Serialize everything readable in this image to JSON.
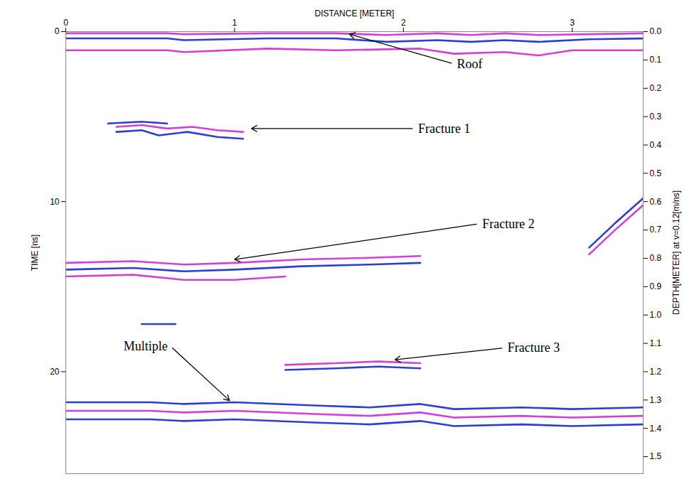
{
  "chart_data": {
    "type": "radargram",
    "xlabel": "DISTANCE [METER]",
    "ylabel": "TIME [ns]",
    "y2label": "DEPTH[METER] at v=0.12[m/ns]",
    "xlim": [
      0,
      3.42
    ],
    "xticks": [
      0,
      1,
      2,
      3
    ],
    "ylim": [
      0,
      26
    ],
    "yticks": [
      0,
      10,
      20
    ],
    "y2lim": [
      0,
      1.56
    ],
    "y2ticks": [
      {
        "value": 0,
        "label": "0.0"
      },
      0.1,
      0.2,
      0.3,
      0.4,
      0.5,
      0.6,
      0.7,
      0.8,
      0.9,
      {
        "value": 1,
        "label": "1.0"
      },
      1.1,
      1.2,
      1.3,
      1.4,
      1.5
    ],
    "series": [
      {
        "color": "#d43fd4",
        "x": [
          0,
          0.6,
          0.7,
          1.2,
          1.6,
          1.9,
          2.2,
          2.4,
          2.6,
          2.8,
          3.1,
          3.42
        ],
        "values": [
          0.1,
          0.1,
          0.15,
          0.1,
          0.1,
          0.2,
          0.1,
          0.2,
          0.1,
          0.2,
          0.15,
          0.1
        ]
      },
      {
        "color": "#2b3fd0",
        "x": [
          0,
          0.6,
          0.7,
          1.2,
          1.6,
          1.9,
          2.2,
          2.4,
          2.6,
          2.8,
          3.1,
          3.42
        ],
        "values": [
          0.4,
          0.4,
          0.5,
          0.4,
          0.4,
          0.6,
          0.5,
          0.6,
          0.5,
          0.6,
          0.45,
          0.4
        ]
      },
      {
        "color": "#d43fd4",
        "x": [
          0,
          0.6,
          0.7,
          1.2,
          1.6,
          2.1,
          2.3,
          2.6,
          2.8,
          3.0,
          3.42
        ],
        "values": [
          1.1,
          1.1,
          1.2,
          1.0,
          1.1,
          1.0,
          1.3,
          1.2,
          1.4,
          1.1,
          1.1
        ]
      },
      {
        "color": "#2b3fd0",
        "x": [
          0.25,
          0.45,
          0.6
        ],
        "values": [
          5.4,
          5.3,
          5.4
        ]
      },
      {
        "color": "#d43fd4",
        "x": [
          0.3,
          0.45,
          0.6,
          0.75,
          0.9,
          1.05
        ],
        "values": [
          5.6,
          5.5,
          5.7,
          5.6,
          5.8,
          5.9
        ]
      },
      {
        "color": "#2b3fd0",
        "x": [
          0.3,
          0.45,
          0.55,
          0.72,
          0.9,
          1.05
        ],
        "values": [
          5.9,
          5.8,
          6.1,
          5.9,
          6.2,
          6.3
        ]
      },
      {
        "color": "#d43fd4",
        "x": [
          0,
          0.4,
          0.7,
          1.0,
          1.4,
          1.8,
          2.1
        ],
        "values": [
          13.6,
          13.5,
          13.7,
          13.6,
          13.4,
          13.3,
          13.2
        ]
      },
      {
        "color": "#2b3fd0",
        "x": [
          0,
          0.4,
          0.7,
          1.0,
          1.4,
          1.8,
          2.1
        ],
        "values": [
          14.0,
          13.9,
          14.1,
          14.0,
          13.8,
          13.7,
          13.6
        ]
      },
      {
        "color": "#d43fd4",
        "x": [
          0,
          0.4,
          0.7,
          1.0,
          1.3
        ],
        "values": [
          14.4,
          14.3,
          14.6,
          14.6,
          14.4
        ]
      },
      {
        "color": "#2b3fd0",
        "x": [
          0.45,
          0.65
        ],
        "values": [
          17.2,
          17.2
        ]
      },
      {
        "color": "#d43fd4",
        "x": [
          1.3,
          1.6,
          1.85,
          2.1
        ],
        "values": [
          19.6,
          19.5,
          19.4,
          19.5
        ]
      },
      {
        "color": "#2b3fd0",
        "x": [
          1.3,
          1.6,
          1.85,
          2.1
        ],
        "values": [
          19.9,
          19.8,
          19.7,
          19.8
        ]
      },
      {
        "color": "#2b3fd0",
        "x": [
          0,
          0.5,
          0.7,
          1.0,
          1.5,
          1.8,
          2.1,
          2.3,
          2.7,
          3.0,
          3.42
        ],
        "values": [
          21.8,
          21.8,
          21.9,
          21.8,
          22.0,
          22.1,
          21.9,
          22.2,
          22.1,
          22.2,
          22.1
        ]
      },
      {
        "color": "#d43fd4",
        "x": [
          0,
          0.5,
          0.7,
          1.0,
          1.5,
          1.8,
          2.1,
          2.3,
          2.7,
          3.0,
          3.42
        ],
        "values": [
          22.3,
          22.3,
          22.4,
          22.3,
          22.5,
          22.6,
          22.4,
          22.7,
          22.6,
          22.7,
          22.6
        ]
      },
      {
        "color": "#2b3fd0",
        "x": [
          0,
          0.5,
          0.7,
          1.0,
          1.5,
          1.8,
          2.1,
          2.3,
          2.7,
          3.0,
          3.42
        ],
        "values": [
          22.8,
          22.8,
          22.9,
          22.8,
          23.0,
          23.1,
          22.9,
          23.2,
          23.1,
          23.2,
          23.1
        ]
      },
      {
        "color": "#2b3fd0",
        "x": [
          3.1,
          3.25,
          3.42
        ],
        "values": [
          12.7,
          11.3,
          9.8
        ]
      },
      {
        "color": "#d43fd4",
        "x": [
          3.1,
          3.25,
          3.42
        ],
        "values": [
          13.1,
          11.7,
          10.2
        ]
      }
    ],
    "annotations": [
      {
        "text": "Roof",
        "x": 2.3,
        "y": 1.9,
        "arrow_x": 1.68,
        "arrow_y": 0.15
      },
      {
        "text": "Fracture 1",
        "x": 2.07,
        "y": 5.7,
        "arrow_x": 1.1,
        "arrow_y": 5.7
      },
      {
        "text": "Fracture 2",
        "x": 2.45,
        "y": 11.3,
        "arrow_x": 1.0,
        "arrow_y": 13.4
      },
      {
        "text": "Fracture 3",
        "x": 2.6,
        "y": 18.6,
        "arrow_x": 1.95,
        "arrow_y": 19.3
      },
      {
        "text": "Multiple",
        "x": 0.62,
        "y": 18.5,
        "arrow_x": 0.97,
        "arrow_y": 21.7
      }
    ]
  }
}
